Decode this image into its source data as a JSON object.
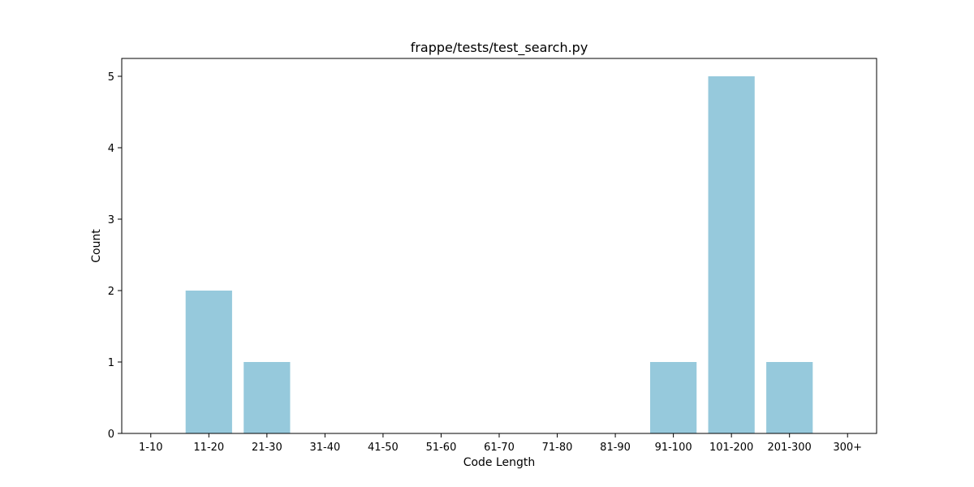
{
  "chart_data": {
    "type": "bar",
    "title": "frappe/tests/test_search.py",
    "xlabel": "Code Length",
    "ylabel": "Count",
    "categories": [
      "1-10",
      "11-20",
      "21-30",
      "31-40",
      "41-50",
      "51-60",
      "61-70",
      "71-80",
      "81-90",
      "91-100",
      "101-200",
      "201-300",
      "300+"
    ],
    "values": [
      0,
      2,
      1,
      0,
      0,
      0,
      0,
      0,
      0,
      1,
      5,
      1,
      0
    ],
    "ylim": [
      0,
      5.25
    ],
    "yticks": [
      0,
      1,
      2,
      3,
      4,
      5
    ],
    "bar_color": "#96c9dc",
    "grid": false,
    "legend": false
  }
}
